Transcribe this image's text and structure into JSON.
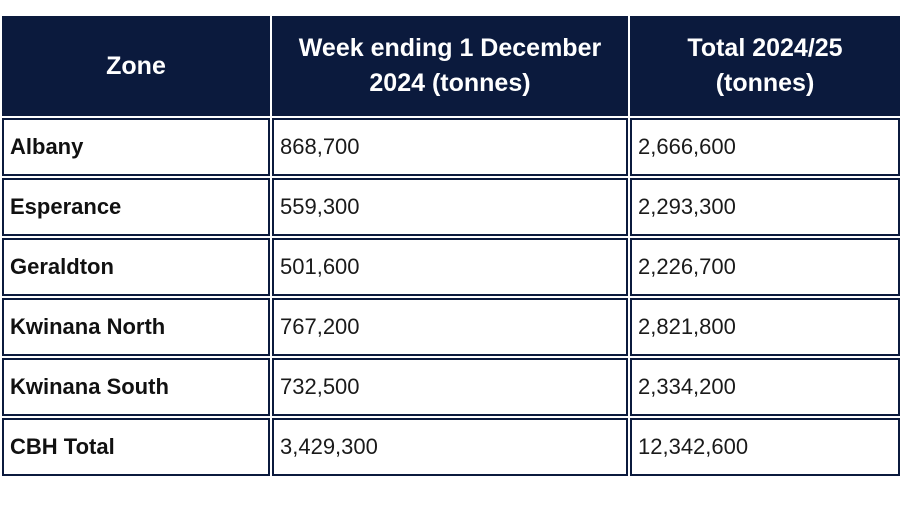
{
  "colors": {
    "header_background": "#0b1a3d",
    "header_text": "#ffffff",
    "cell_border": "#0b1a3d",
    "page_background": "#ffffff"
  },
  "table": {
    "headers": [
      "Zone",
      "Week ending 1 December 2024 (tonnes)",
      "Total 2024/25 (tonnes)"
    ],
    "rows": [
      {
        "zone": "Albany",
        "week": "868,700",
        "total": "2,666,600"
      },
      {
        "zone": "Esperance",
        "week": "559,300",
        "total": "2,293,300"
      },
      {
        "zone": "Geraldton",
        "week": "501,600",
        "total": "2,226,700"
      },
      {
        "zone": "Kwinana North",
        "week": "767,200",
        "total": "2,821,800"
      },
      {
        "zone": "Kwinana South",
        "week": "732,500",
        "total": "2,334,200"
      },
      {
        "zone": "CBH Total",
        "week": "3,429,300",
        "total": "12,342,600"
      }
    ]
  }
}
